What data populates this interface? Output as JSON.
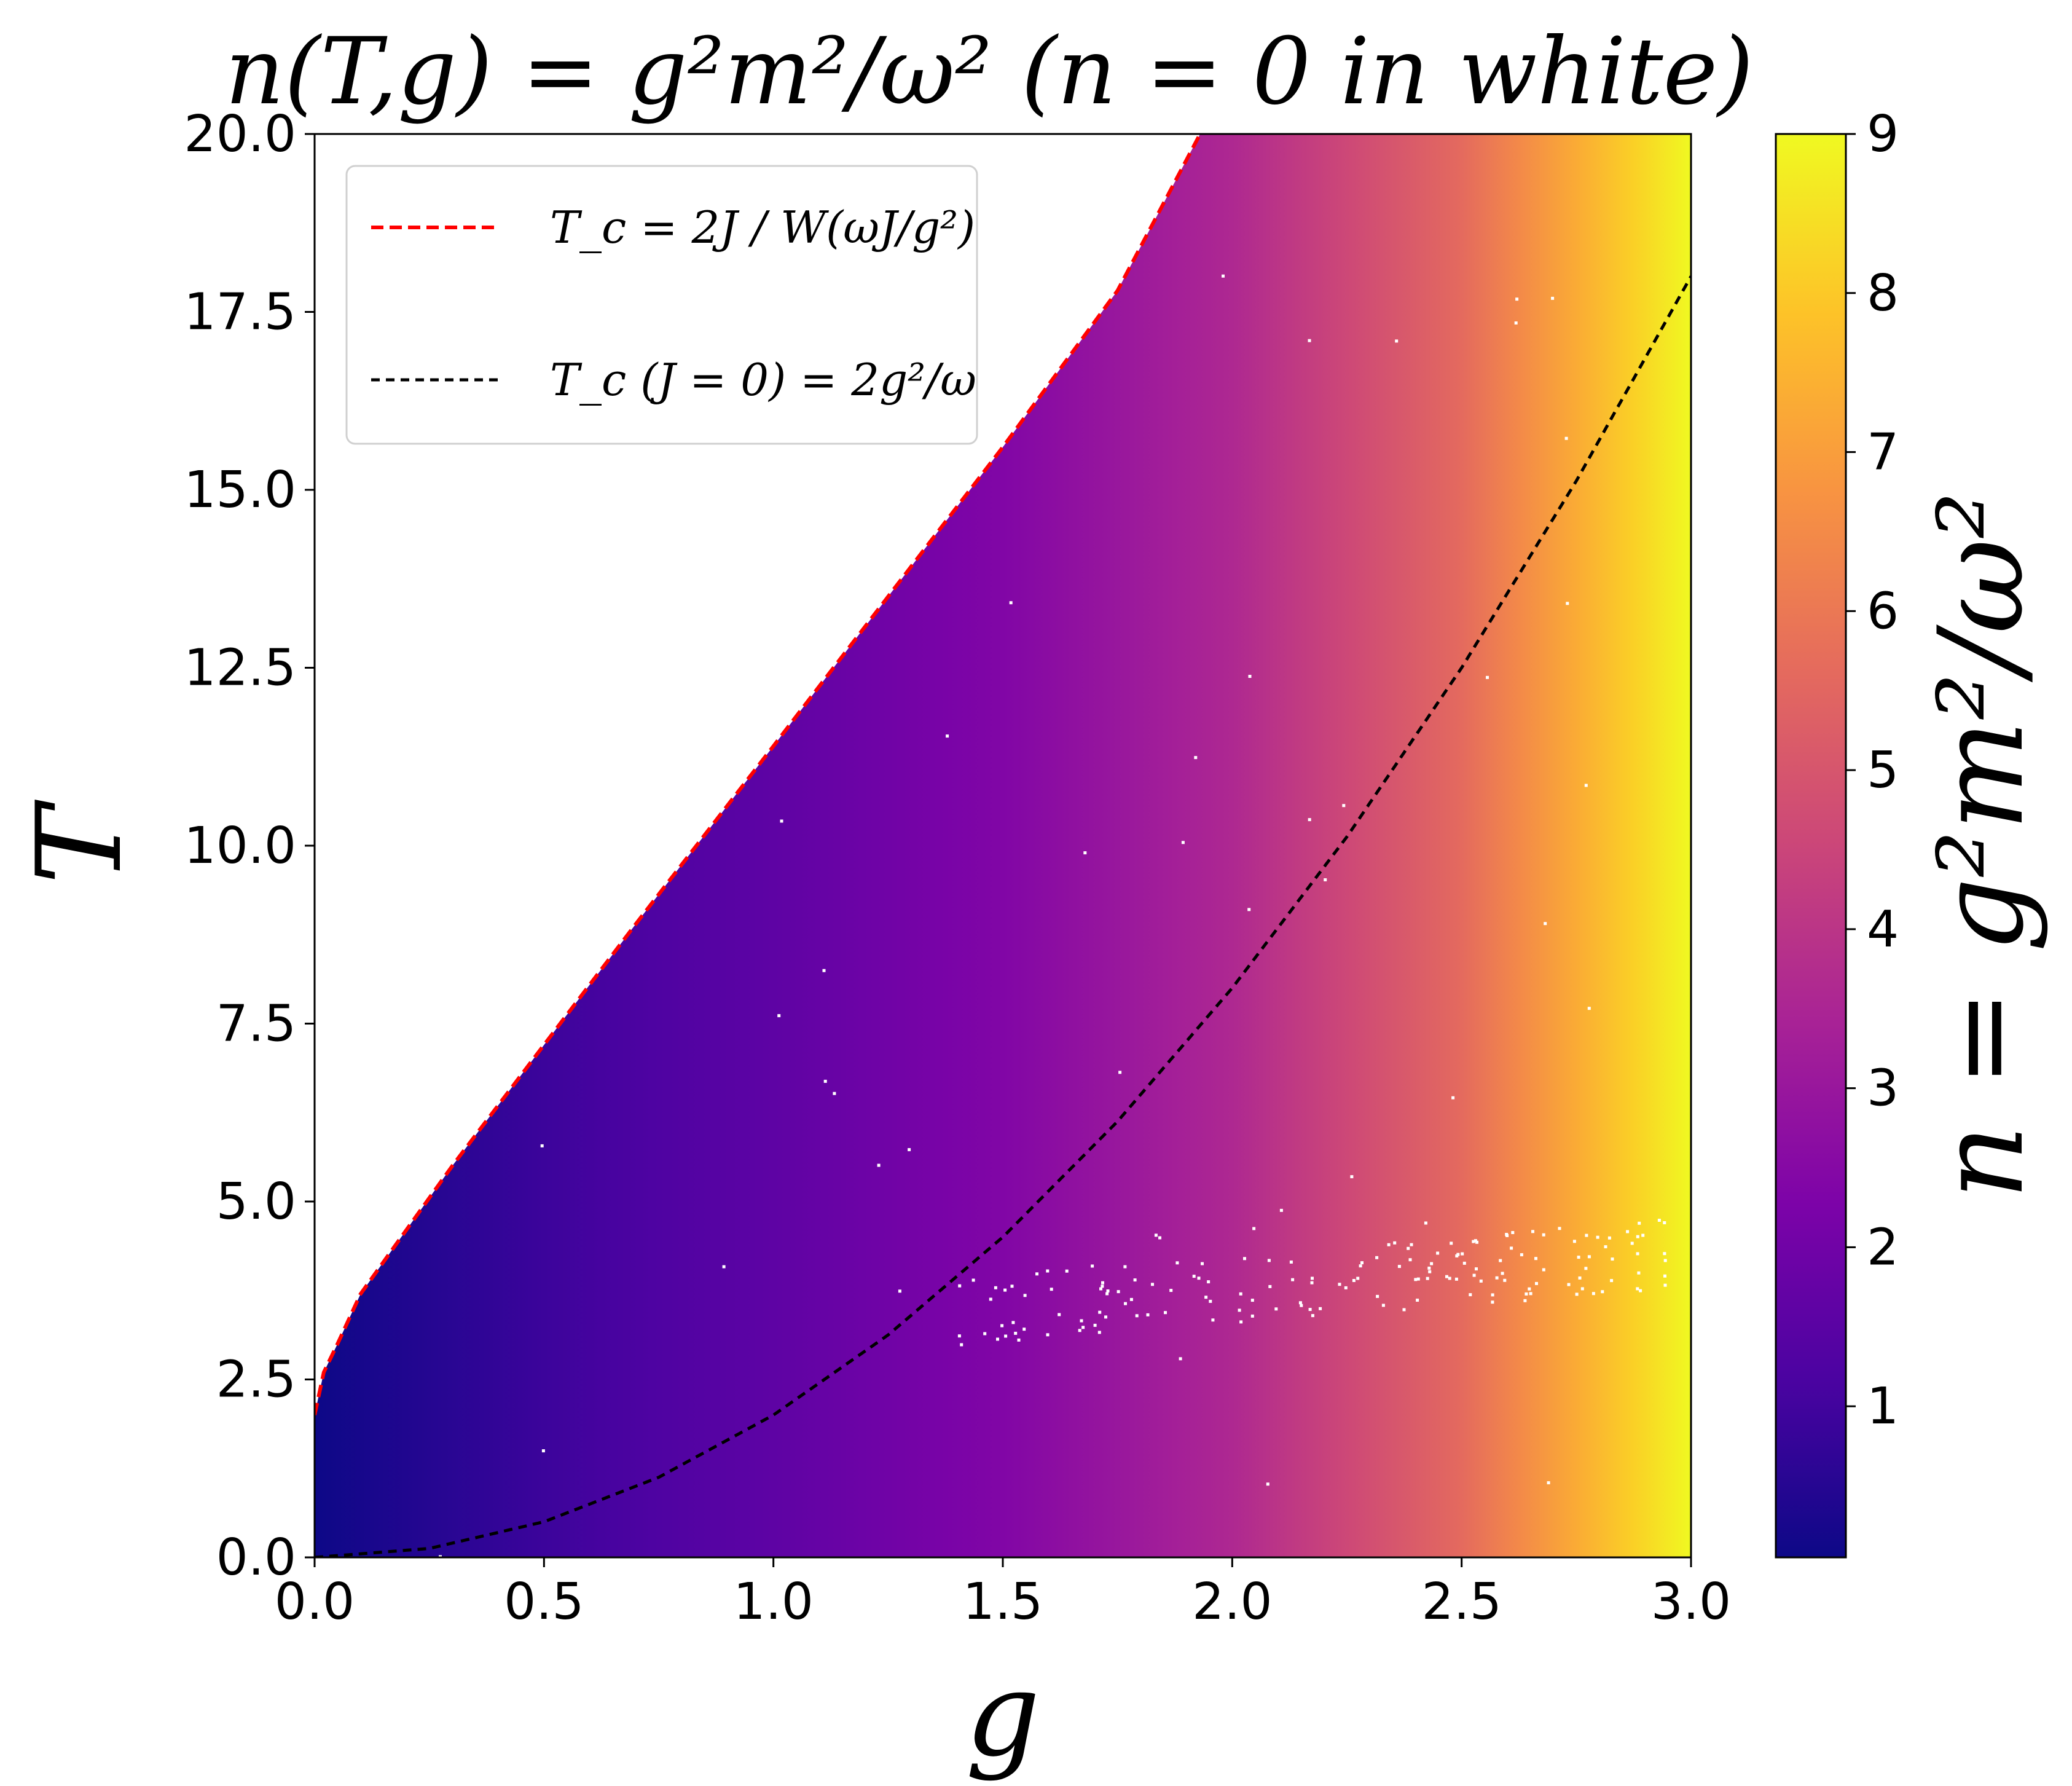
{
  "chart_data": {
    "type": "heatmap",
    "title": "n(T,g) = g²m²/ω² (n = 0 in white)",
    "xlabel": "g",
    "ylabel": "T",
    "xlim": [
      0.0,
      3.0
    ],
    "ylim": [
      0.0,
      20.0
    ],
    "x_ticks": [
      "0.0",
      "0.5",
      "1.0",
      "1.5",
      "2.0",
      "2.5",
      "3.0"
    ],
    "y_ticks": [
      "0.0",
      "2.5",
      "5.0",
      "7.5",
      "10.0",
      "12.5",
      "15.0",
      "17.5",
      "20.0"
    ],
    "colormap": "plasma",
    "colorbar": {
      "label": "n = g²m²/ω²",
      "range": [
        0.05,
        9.0
      ],
      "ticks": [
        "1",
        "2",
        "3",
        "4",
        "5",
        "6",
        "7",
        "8",
        "9"
      ]
    },
    "color_by_g": {
      "g": [
        0.0,
        0.5,
        1.0,
        1.5,
        2.0,
        2.5,
        3.0
      ],
      "n": [
        0.05,
        0.9,
        1.6,
        2.4,
        3.6,
        5.6,
        9.0
      ]
    },
    "grid": false,
    "legend": {
      "placement": "upper-left",
      "entries": [
        {
          "label": "T_c = 2J / W(ωJ/g²)",
          "color": "#ff0000",
          "style": "dashed"
        },
        {
          "label": "T_c (J = 0) = 2g²/ω",
          "color": "#000000",
          "style": "dashed"
        }
      ]
    },
    "series": [
      {
        "name": "T_c = 2J / W(ωJ/g²)",
        "color": "#ff0000",
        "x": [
          0.0,
          0.02,
          0.05,
          0.1,
          0.2,
          0.3,
          0.5,
          0.7,
          1.0,
          1.25,
          1.5,
          1.75,
          1.93
        ],
        "y": [
          2.0,
          2.6,
          3.0,
          3.7,
          4.6,
          5.5,
          7.2,
          8.9,
          11.4,
          13.5,
          15.6,
          17.8,
          20.0
        ]
      },
      {
        "name": "T_c (J = 0) = 2g²/ω",
        "color": "#000000",
        "x": [
          0.0,
          0.25,
          0.5,
          0.75,
          1.0,
          1.25,
          1.5,
          1.75,
          2.0,
          2.25,
          2.5,
          2.75,
          3.0
        ],
        "y": [
          0.0,
          0.125,
          0.5,
          1.125,
          2.0,
          3.125,
          4.5,
          6.125,
          8.0,
          10.125,
          12.5,
          15.125,
          18.0
        ]
      }
    ]
  }
}
